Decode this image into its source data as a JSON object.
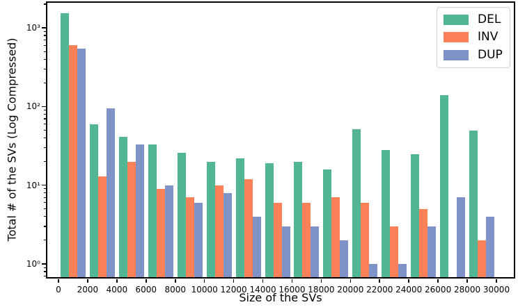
{
  "chart_data": {
    "type": "bar",
    "title": "",
    "xlabel": "Size of the SVs",
    "ylabel": "Total # of the SVs (Log Compressed)",
    "y_scale": "log",
    "grid": false,
    "xlim": [
      -800,
      31200
    ],
    "ylim": [
      0.66,
      2200
    ],
    "legend_position": "upper-right",
    "categories": [
      1000,
      3000,
      5000,
      7000,
      9000,
      11000,
      13000,
      15000,
      17000,
      19000,
      21000,
      23000,
      25000,
      27000,
      29000
    ],
    "series": [
      {
        "name": "DEL",
        "color": "#52b593",
        "values": [
          1550,
          60,
          41,
          33,
          26,
          20,
          22,
          19,
          20,
          16,
          52,
          28,
          25,
          140,
          50
        ]
      },
      {
        "name": "INV",
        "color": "#fc8159",
        "values": [
          600,
          13,
          20,
          9,
          7,
          10,
          12,
          6,
          6,
          7,
          6,
          3,
          5,
          0,
          2
        ]
      },
      {
        "name": "DUP",
        "color": "#8093c8",
        "values": [
          550,
          95,
          33,
          10,
          6,
          8,
          4,
          3,
          3,
          2,
          1,
          1,
          3,
          7,
          4
        ]
      }
    ],
    "x_ticks": [
      {
        "value": 0,
        "label": "0"
      },
      {
        "value": 2000,
        "label": "2000"
      },
      {
        "value": 4000,
        "label": "4000"
      },
      {
        "value": 6000,
        "label": "6000"
      },
      {
        "value": 8000,
        "label": "8000"
      },
      {
        "value": 10000,
        "label": "10000"
      },
      {
        "value": 12000,
        "label": "12000"
      },
      {
        "value": 14000,
        "label": "14000"
      },
      {
        "value": 16000,
        "label": "16000"
      },
      {
        "value": 18000,
        "label": "18000"
      },
      {
        "value": 20000,
        "label": "20000"
      },
      {
        "value": 22000,
        "label": "22000"
      },
      {
        "value": 24000,
        "label": "24000"
      },
      {
        "value": 26000,
        "label": "26000"
      },
      {
        "value": 28000,
        "label": "28000"
      },
      {
        "value": 30000,
        "label": "30000"
      }
    ],
    "y_ticks": [
      {
        "value": 1,
        "label": "10⁰"
      },
      {
        "value": 10,
        "label": "10¹"
      },
      {
        "value": 100,
        "label": "10²"
      },
      {
        "value": 1000,
        "label": "10³"
      }
    ]
  },
  "colors": {
    "spine": "#000000",
    "text": "#000000",
    "legend_border": "#cccccc",
    "background": "#ffffff"
  }
}
